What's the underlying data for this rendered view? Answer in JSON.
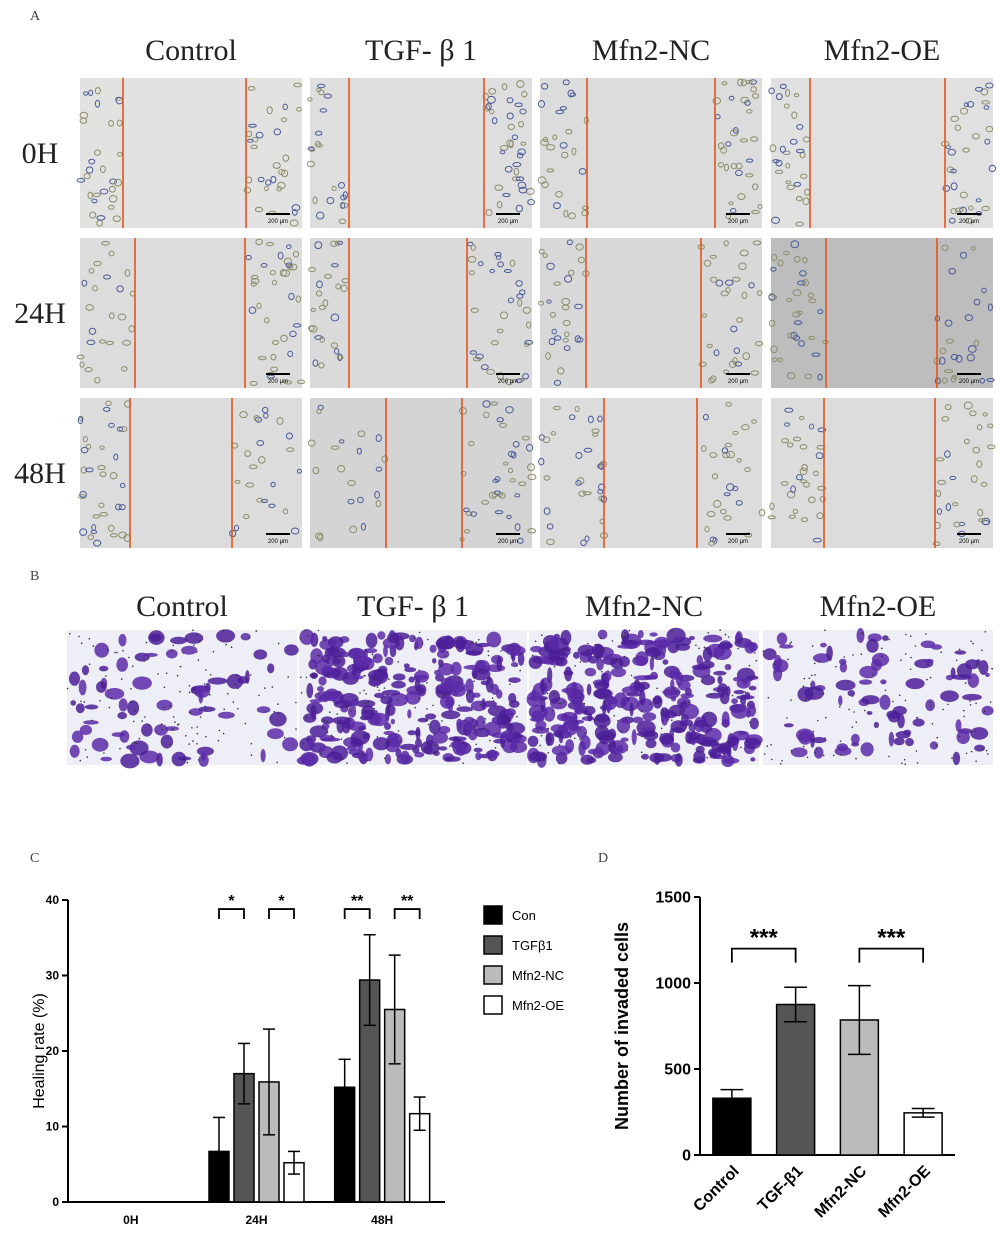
{
  "panel_labels": [
    "A",
    "B",
    "C",
    "D"
  ],
  "scratch": {
    "columns": [
      "Control",
      "TGF- β 1",
      "Mfn2-NC",
      "Mfn2-OE"
    ],
    "rows": [
      "0H",
      "24H",
      "48H"
    ],
    "scale_label": "200 μm"
  },
  "transwell": {
    "columns": [
      "Control",
      "TGF- β 1",
      "Mfn2-NC",
      "Mfn2-OE"
    ]
  },
  "chart_data": [
    {
      "type": "bar",
      "y_label": "Healing rate (%)",
      "categories": [
        "0H",
        "24H",
        "48H"
      ],
      "series": [
        {
          "name": "Con",
          "color": "#000000",
          "values": [
            0,
            6.7,
            15.2
          ],
          "errors": [
            0,
            4.5,
            3.7
          ]
        },
        {
          "name": "TGFβ1",
          "color": "#555555",
          "values": [
            0,
            17,
            29.4
          ],
          "errors": [
            0,
            4,
            6
          ]
        },
        {
          "name": "Mfn2-NC",
          "color": "#bbbbbb",
          "values": [
            0,
            15.9,
            25.5
          ],
          "errors": [
            0,
            7,
            7.2
          ]
        },
        {
          "name": "Mfn2-OE",
          "color": "#ffffff",
          "values": [
            0,
            5.2,
            11.7
          ],
          "errors": [
            0,
            1.5,
            2.2
          ]
        }
      ],
      "ylim": [
        0,
        40
      ],
      "yticks": [
        0,
        10,
        20,
        30,
        40
      ],
      "legend": "right",
      "annotations": [
        {
          "text": "*",
          "category": 1,
          "between": [
            0,
            1
          ]
        },
        {
          "text": "*",
          "category": 1,
          "between": [
            2,
            3
          ]
        },
        {
          "text": "**",
          "category": 2,
          "between": [
            0,
            1
          ]
        },
        {
          "text": "**",
          "category": 2,
          "between": [
            2,
            3
          ]
        }
      ]
    },
    {
      "type": "bar",
      "y_label": "Number of invaded cells",
      "categories": [
        "Control",
        "TGF-β1",
        "Mfn2-NC",
        "Mfn2-OE"
      ],
      "values": [
        330,
        875,
        785,
        245
      ],
      "errors": [
        50,
        100,
        200,
        25
      ],
      "colors": [
        "#000000",
        "#555555",
        "#bbbbbb",
        "#ffffff"
      ],
      "ylim": [
        0,
        1500
      ],
      "yticks": [
        0,
        500,
        1000,
        1500
      ],
      "annotations": [
        {
          "text": "***",
          "between": [
            0,
            1
          ]
        },
        {
          "text": "***",
          "between": [
            2,
            3
          ]
        }
      ]
    }
  ]
}
